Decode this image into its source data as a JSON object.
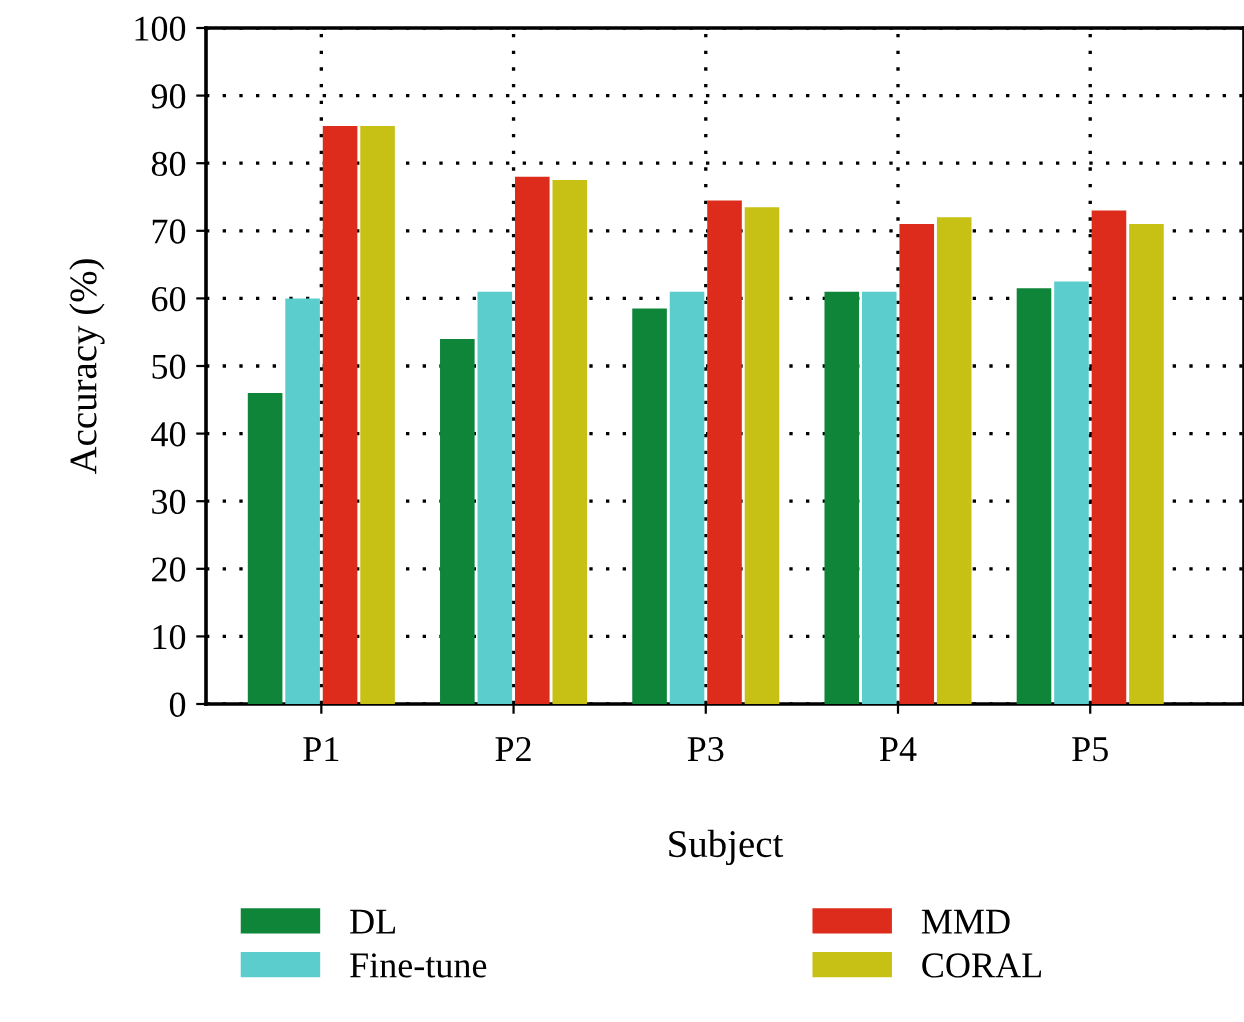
{
  "chart_data": {
    "type": "bar",
    "xlabel": "Subject",
    "ylabel": "Accuracy (%)",
    "categories": [
      "P1",
      "P2",
      "P3",
      "P4",
      "P5"
    ],
    "series": [
      {
        "name": "DL",
        "color": "#0e8538",
        "values": [
          46,
          54,
          58.5,
          61,
          61.5
        ]
      },
      {
        "name": "Fine-tune",
        "color": "#5ccdcd",
        "values": [
          60,
          61,
          61,
          61,
          62.5
        ]
      },
      {
        "name": "MMD",
        "color": "#dd2c1b",
        "values": [
          85.5,
          78,
          74.5,
          71,
          73
        ]
      },
      {
        "name": "CORAL",
        "color": "#c8c115",
        "values": [
          85.5,
          77.5,
          73.5,
          72,
          71
        ]
      }
    ],
    "ylim": [
      0,
      100
    ],
    "yticks": [
      0,
      10,
      20,
      30,
      40,
      50,
      60,
      70,
      80,
      90,
      100
    ],
    "grid": true,
    "legend": "bottom"
  }
}
